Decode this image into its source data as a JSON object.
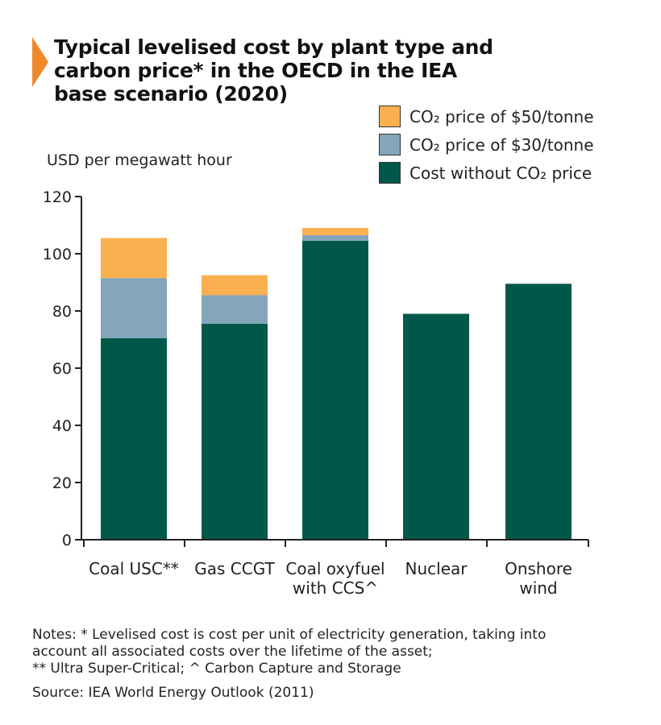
{
  "colors": {
    "accent": "#f0892a",
    "co2_50": "#fbb050",
    "co2_30": "#85a6ba",
    "base": "#00584a",
    "axis": "#222222"
  },
  "chart_data": {
    "type": "bar",
    "stacked": true,
    "title": "Typical levelised cost by plant type and\ncarbon price* in the OECD in the IEA\nbase scenario (2020)",
    "ylabel": "USD per megawatt hour",
    "ylim": [
      0,
      120
    ],
    "yticks": [
      0,
      20,
      40,
      60,
      80,
      100,
      120
    ],
    "categories": [
      "Coal USC**",
      "Gas CCGT",
      "Coal oxyfuel\nwith CCS^",
      "Nuclear",
      "Onshore\nwind"
    ],
    "series": [
      {
        "name": "Cost without CO₂ price",
        "color": "#00584a",
        "values": [
          70.5,
          75.5,
          104.5,
          79,
          89.5
        ]
      },
      {
        "name": "CO₂ price of $30/tonne",
        "color": "#85a6ba",
        "values": [
          21,
          10,
          2,
          0,
          0
        ]
      },
      {
        "name": "CO₂ price of $50/tonne",
        "color": "#fbb050",
        "values": [
          14,
          7,
          2.5,
          0,
          0
        ]
      }
    ],
    "legend_position": "top-right",
    "grid": false
  },
  "legend": [
    {
      "label": "CO₂ price of $50/tonne",
      "color": "#fbb050"
    },
    {
      "label": "CO₂ price of $30/tonne",
      "color": "#85a6ba"
    },
    {
      "label": "Cost without CO₂ price",
      "color": "#00584a"
    }
  ],
  "notes": "Notes: * Levelised cost is cost per unit of electricity generation, taking into\naccount all associated costs over the lifetime of the asset;\n** Ultra Super-Critical; ^ Carbon Capture and Storage",
  "source": "Source: IEA World Energy Outlook (2011)"
}
